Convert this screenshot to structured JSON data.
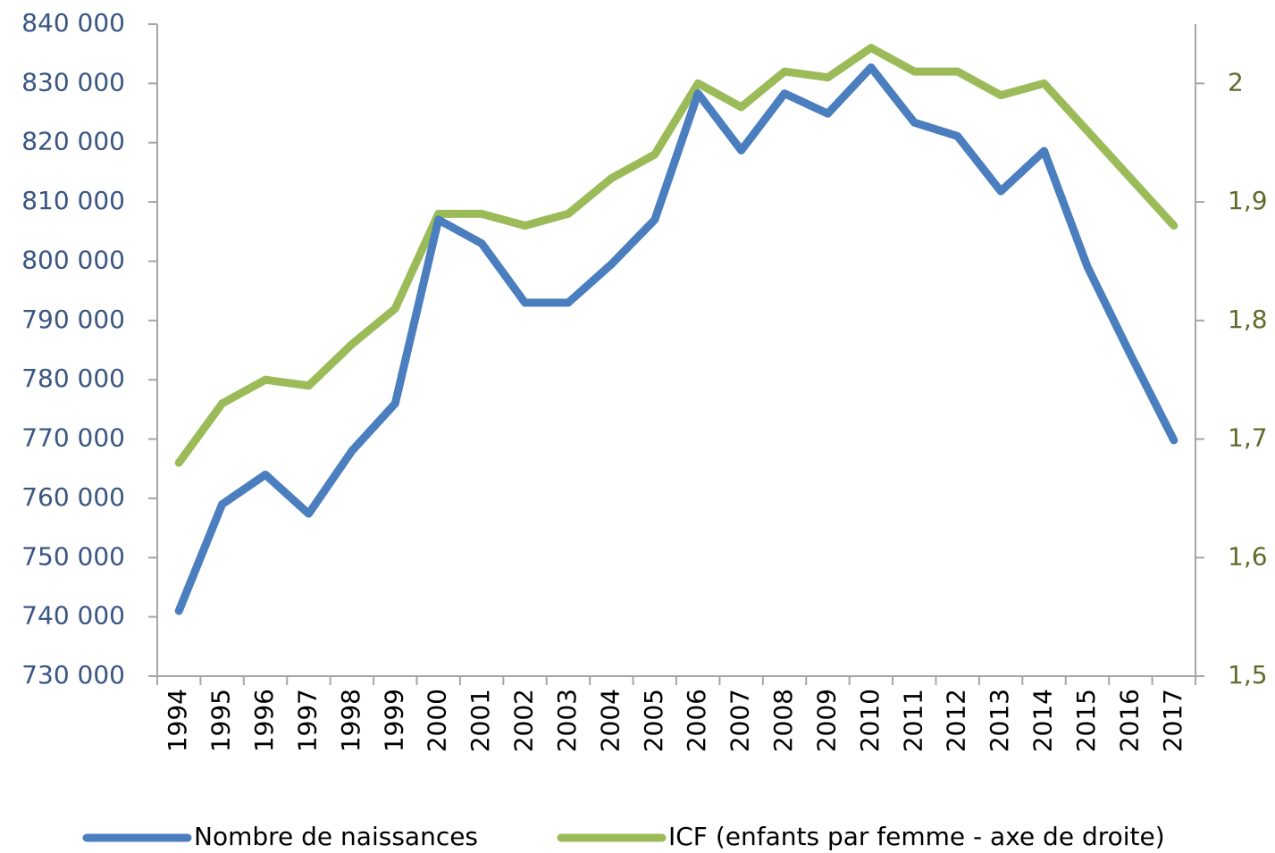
{
  "chart_data": {
    "type": "line",
    "categories": [
      "1994",
      "1995",
      "1996",
      "1997",
      "1998",
      "1999",
      "2000",
      "2001",
      "2002",
      "2003",
      "2004",
      "2005",
      "2006",
      "2007",
      "2008",
      "2009",
      "2010",
      "2011",
      "2012",
      "2013",
      "2014",
      "2015",
      "2016",
      "2017"
    ],
    "series": [
      {
        "name": "Nombre de naissances",
        "color": "#4a7ebf",
        "values": [
          741000,
          759000,
          764000,
          757400,
          768000,
          776000,
          807000,
          803000,
          793000,
          793000,
          799500,
          807000,
          828300,
          818700,
          828300,
          824900,
          832700,
          823400,
          821100,
          811800,
          818600,
          799100,
          784200,
          769800
        ]
      },
      {
        "name": "ICF (enfants par femme - axe de droite)",
        "color": "#9bbb59",
        "axis": "y2",
        "values": [
          1.68,
          1.73,
          1.75,
          1.745,
          1.78,
          1.81,
          1.89,
          1.89,
          1.88,
          1.89,
          1.92,
          1.94,
          2.0,
          1.98,
          2.01,
          2.005,
          2.03,
          2.01,
          2.01,
          1.99,
          2.0,
          1.96,
          1.92,
          1.88
        ]
      }
    ],
    "ylim": [
      730000,
      840000
    ],
    "yticks": [
      {
        "value": 730000,
        "label": "730 000"
      },
      {
        "value": 740000,
        "label": "740 000"
      },
      {
        "value": 750000,
        "label": "750 000"
      },
      {
        "value": 760000,
        "label": "760 000"
      },
      {
        "value": 770000,
        "label": "770 000"
      },
      {
        "value": 780000,
        "label": "780 000"
      },
      {
        "value": 790000,
        "label": "790 000"
      },
      {
        "value": 800000,
        "label": "800 000"
      },
      {
        "value": 810000,
        "label": "810 000"
      },
      {
        "value": 820000,
        "label": "820 000"
      },
      {
        "value": 830000,
        "label": "830 000"
      },
      {
        "value": 840000,
        "label": "840 000"
      }
    ],
    "y2lim": [
      1.5,
      2.05
    ],
    "y2ticks": [
      {
        "value": 1.5,
        "label": "1,5"
      },
      {
        "value": 1.6,
        "label": "1,6"
      },
      {
        "value": 1.7,
        "label": "1,7"
      },
      {
        "value": 1.8,
        "label": "1,8"
      },
      {
        "value": 1.9,
        "label": "1,9"
      },
      2
    ],
    "legend": "bottom",
    "grid": false
  }
}
